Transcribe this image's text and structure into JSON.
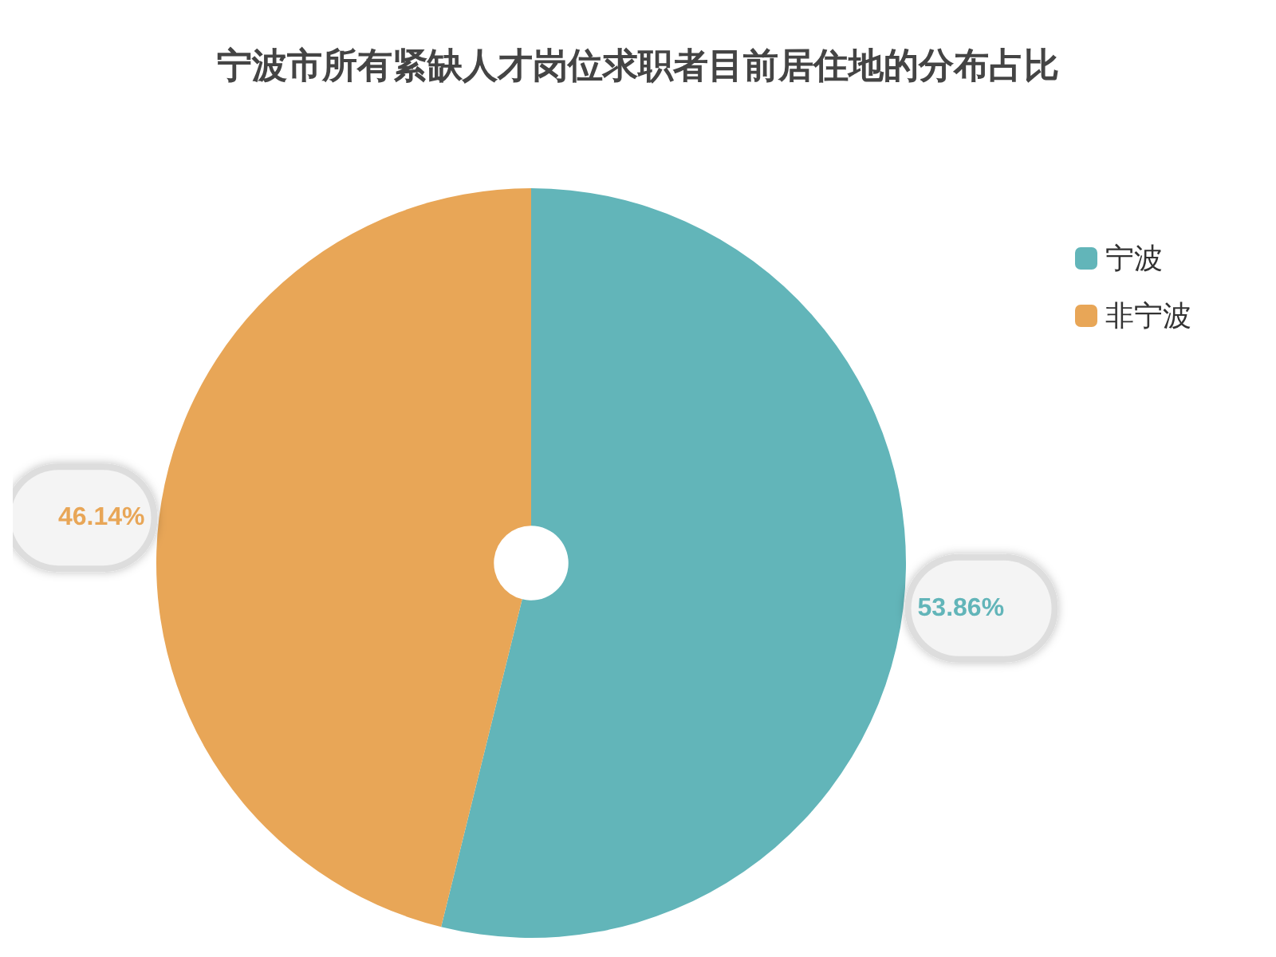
{
  "chart_data": {
    "type": "pie",
    "title": "宁波市所有紧缺人才岗位求职者目前居住地的分布占比",
    "categories": [
      "宁波",
      "非宁波"
    ],
    "values": [
      53.86,
      46.14
    ],
    "colors": [
      "#62b5b9",
      "#e8a657"
    ],
    "value_labels": [
      "53.86%",
      "46.14%"
    ],
    "legend": "top right"
  }
}
